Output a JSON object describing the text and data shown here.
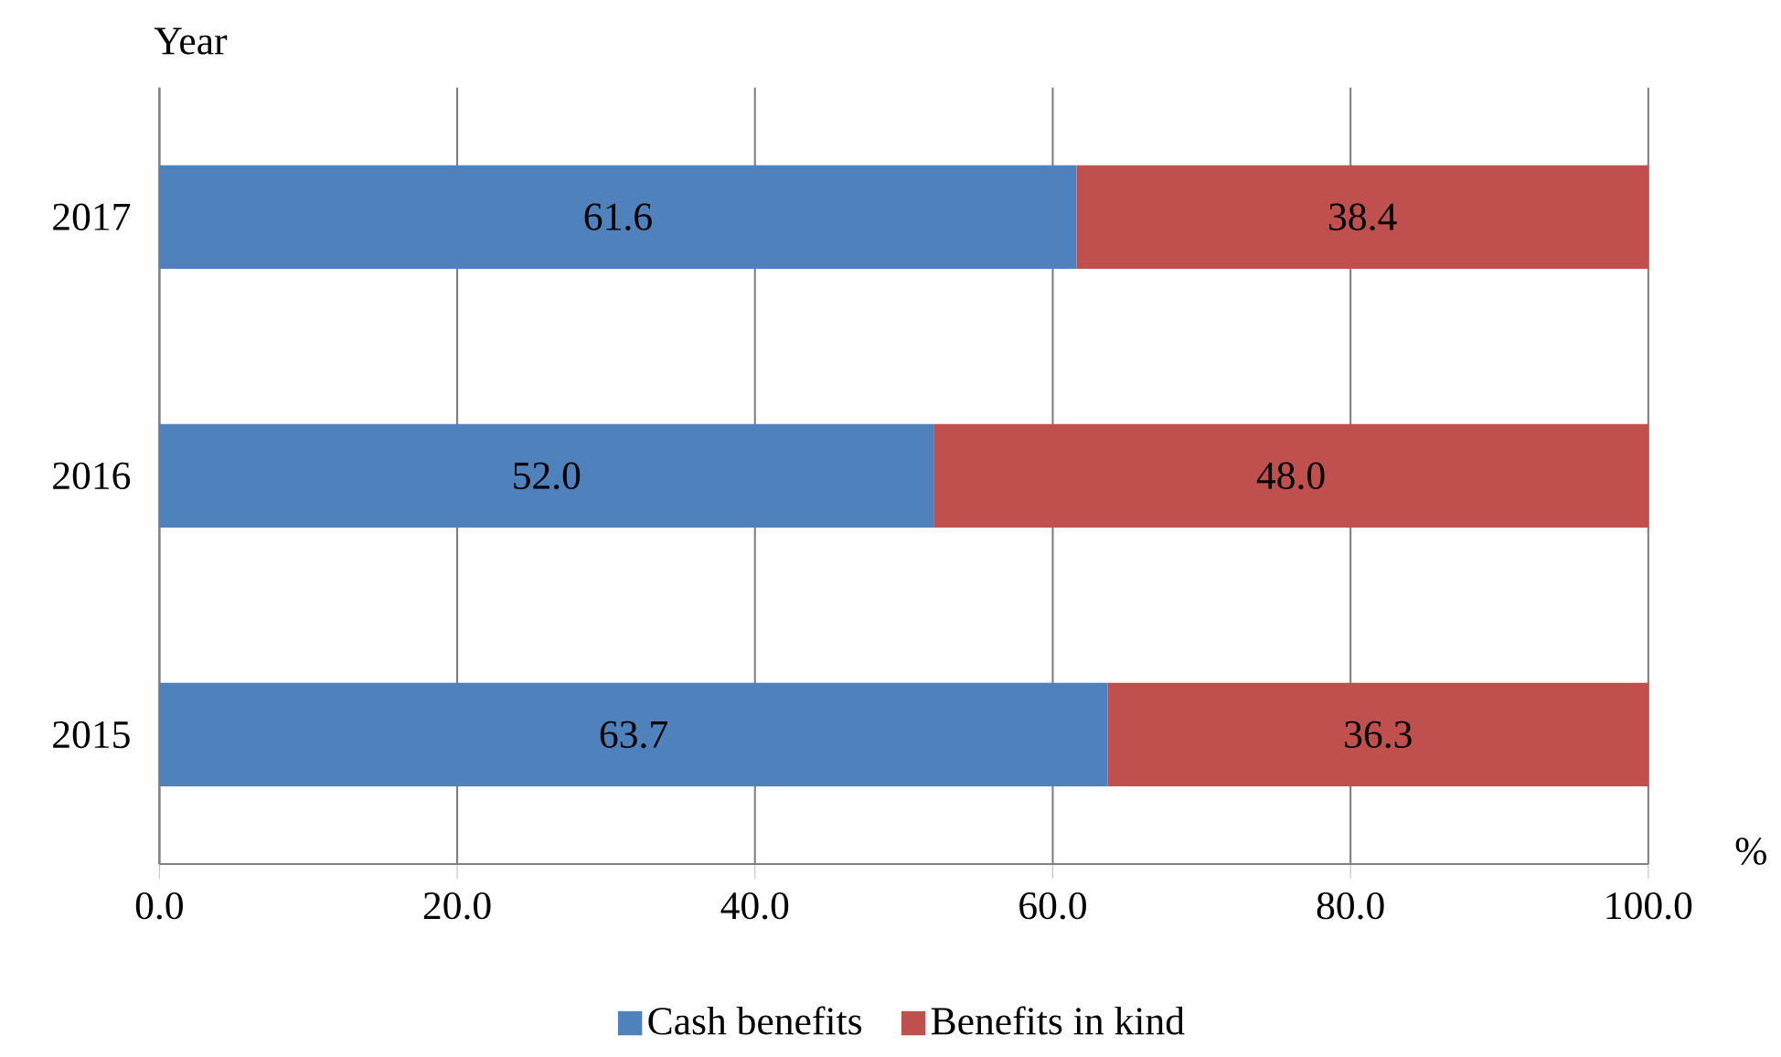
{
  "chart_data": {
    "type": "bar",
    "orientation": "horizontal",
    "stacked": true,
    "categories": [
      "2017",
      "2016",
      "2015"
    ],
    "series": [
      {
        "name": "Cash benefits",
        "color": "#4f81bd",
        "values": [
          61.6,
          52.0,
          63.7
        ],
        "value_labels": [
          "61.6",
          "52.0",
          "63.7"
        ]
      },
      {
        "name": "Benefits in kind",
        "color": "#c0504d",
        "values": [
          38.4,
          48.0,
          36.3
        ],
        "value_labels": [
          "38.4",
          "48.0",
          "36.3"
        ]
      }
    ],
    "xlim": [
      0,
      100
    ],
    "xticks": [
      {
        "value": 0,
        "label": "0.0"
      },
      {
        "value": 20,
        "label": "20.0"
      },
      {
        "value": 40,
        "label": "40.0"
      },
      {
        "value": 60,
        "label": "60.0"
      },
      {
        "value": 80,
        "label": "80.0"
      },
      {
        "value": 100,
        "label": "100.0"
      }
    ],
    "xlabel": "%",
    "ylabel": "Year",
    "grid": "x",
    "legend": "bottom"
  }
}
